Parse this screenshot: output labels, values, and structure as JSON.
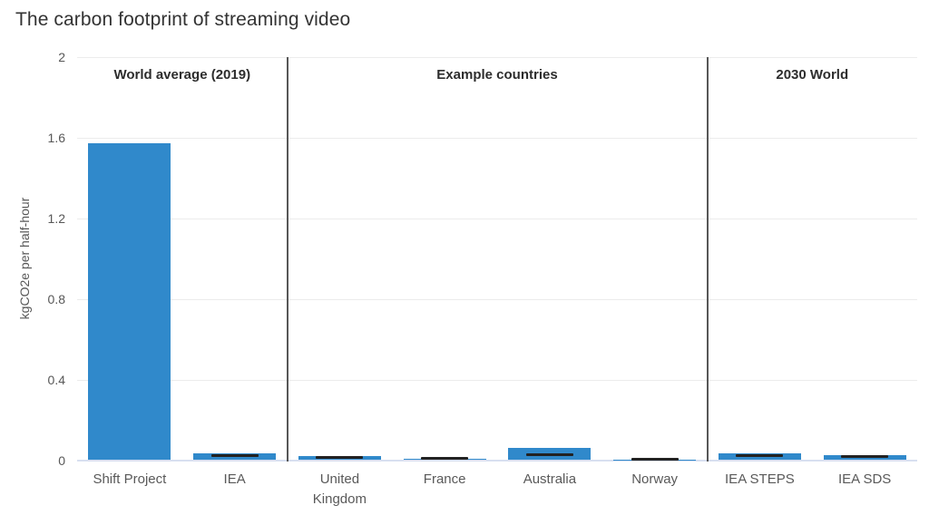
{
  "title": "The carbon footprint of streaming video",
  "chart_data": {
    "type": "bar",
    "title": "The carbon footprint of streaming video",
    "xlabel": "",
    "ylabel": "kgCO2e per half-hour",
    "ylim": [
      0,
      2
    ],
    "yticks": [
      0,
      0.4,
      0.8,
      1.2,
      1.6,
      2
    ],
    "grid": true,
    "legend": "none",
    "categories": [
      "Shift Project",
      "IEA",
      "United Kingdom",
      "France",
      "Australia",
      "Norway",
      "IEA STEPS",
      "IEA SDS"
    ],
    "series": [
      {
        "name": "estimate bar (kgCO2e per half-hour)",
        "values": [
          1.57,
          0.031,
          0.019,
          0.005,
          0.057,
          0.002,
          0.03,
          0.024
        ]
      },
      {
        "name": "central estimate marker (kgCO2e per half-hour)",
        "values": [
          null,
          0.02,
          0.012,
          0.008,
          0.026,
          0.004,
          0.018,
          0.014
        ]
      }
    ],
    "sections": [
      {
        "label": "World average (2019)",
        "categories": [
          "Shift Project",
          "IEA"
        ]
      },
      {
        "label": "Example countries",
        "categories": [
          "United Kingdom",
          "France",
          "Australia",
          "Norway"
        ]
      },
      {
        "label": "2030 World",
        "categories": [
          "IEA STEPS",
          "IEA SDS"
        ]
      }
    ],
    "colors": {
      "bar": "#3089cb",
      "marker": "#222222",
      "grid": "#ececec",
      "baseline": "#d8dff0",
      "divider": "#575757",
      "title": "#333333",
      "section_header": "#2d2d2d",
      "axis_text": "#575757",
      "background": "#ffffff"
    }
  }
}
